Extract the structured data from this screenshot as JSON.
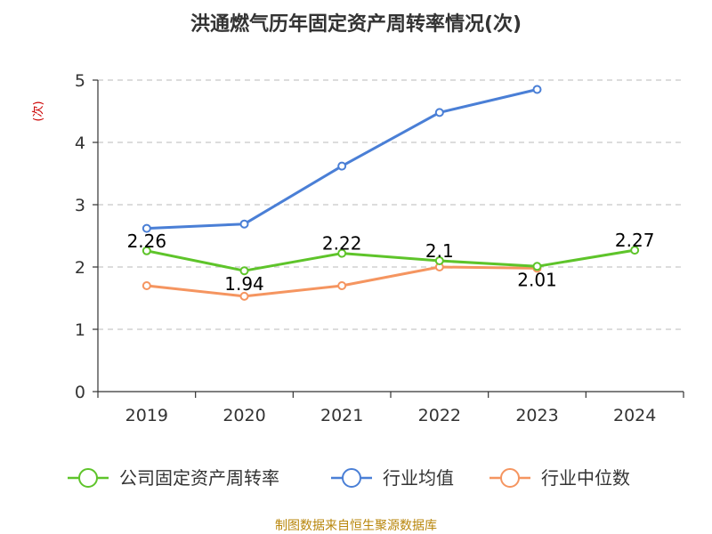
{
  "chart_data": {
    "type": "line",
    "title": "洪通燃气历年固定资产周转率情况(次)",
    "ylabel": "(次)",
    "xlabel": "",
    "categories": [
      "2019",
      "2020",
      "2021",
      "2022",
      "2023",
      "2024"
    ],
    "y_ticks": [
      "0",
      "1",
      "2",
      "3",
      "4",
      "5"
    ],
    "ylim": [
      0,
      5
    ],
    "grid": true,
    "legend_position": "bottom",
    "series": [
      {
        "name": "公司固定资产周转率",
        "color": "#5ec42a",
        "values": [
          2.26,
          1.94,
          2.22,
          2.1,
          2.01,
          2.27
        ],
        "labels": [
          "2.26",
          "1.94",
          "2.22",
          "2.1",
          "2.01",
          "2.27"
        ]
      },
      {
        "name": "行业均值",
        "color": "#4a7fd6",
        "values": [
          2.62,
          2.69,
          3.62,
          4.48,
          4.85,
          null
        ]
      },
      {
        "name": "行业中位数",
        "color": "#f59560",
        "values": [
          1.7,
          1.53,
          1.7,
          2.0,
          1.98,
          null
        ]
      }
    ],
    "source": "制图数据来自恒生聚源数据库"
  }
}
